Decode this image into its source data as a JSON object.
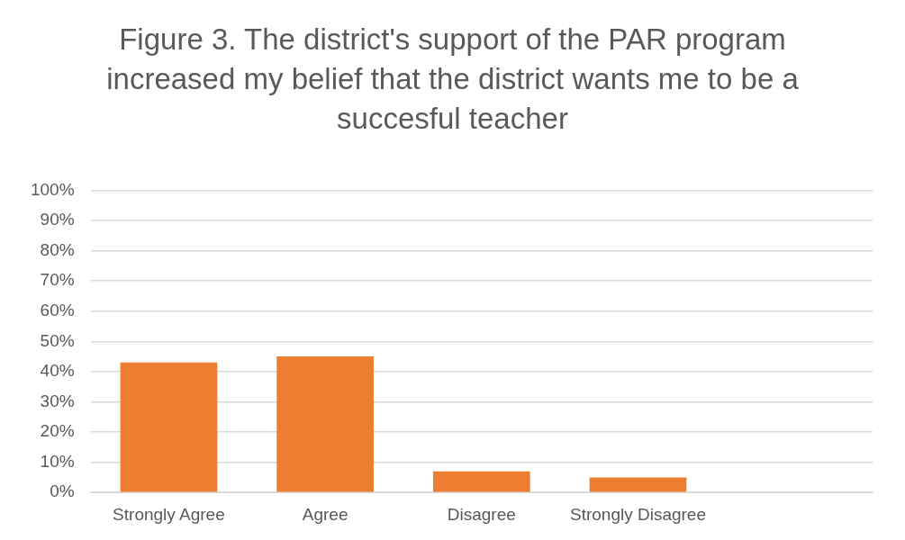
{
  "chart_data": {
    "type": "bar",
    "title": "Figure 3. The district's support of the PAR program increased my belief that the district wants me to be a succesful teacher",
    "categories": [
      "Strongly Agree",
      "Agree",
      "Disagree",
      "Strongly Disagree",
      null
    ],
    "values": [
      43,
      45,
      7,
      5,
      null
    ],
    "color": "#ed7d31",
    "ylim": [
      0,
      100
    ],
    "yticks": [
      {
        "value": 0,
        "label": "0%"
      },
      {
        "value": 10,
        "label": "10%"
      },
      {
        "value": 20,
        "label": "20%"
      },
      {
        "value": 30,
        "label": "30%"
      },
      {
        "value": 40,
        "label": "40%"
      },
      {
        "value": 50,
        "label": "50%"
      },
      {
        "value": 60,
        "label": "60%"
      },
      {
        "value": 70,
        "label": "70%"
      },
      {
        "value": 80,
        "label": "80%"
      },
      {
        "value": 90,
        "label": "90%"
      },
      {
        "value": 100,
        "label": "100%"
      }
    ],
    "grid": "y"
  }
}
